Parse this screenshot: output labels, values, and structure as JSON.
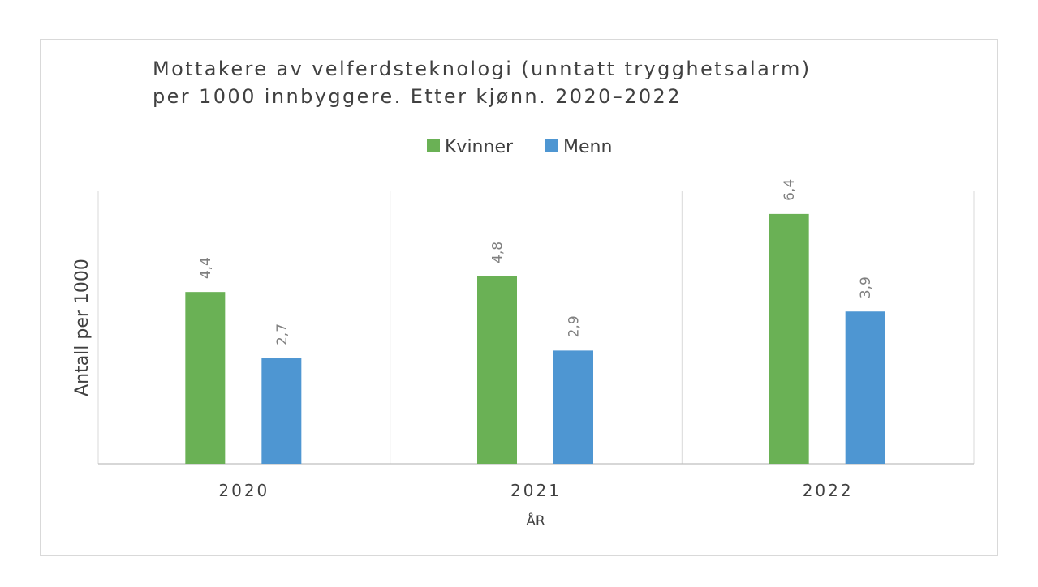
{
  "chart_data": {
    "type": "bar",
    "title_lines": [
      "Mottakere av velferdsteknologi (unntatt trygghetsalarm)",
      "per 1000 innbyggere. Etter kjønn. 2020–2022"
    ],
    "categories": [
      "2020",
      "2021",
      "2022"
    ],
    "series": [
      {
        "name": "Kvinner",
        "values": [
          4.4,
          4.8,
          6.4
        ],
        "labels": [
          "4,4",
          "4,8",
          "6,4"
        ],
        "color": "#6ab155"
      },
      {
        "name": "Menn",
        "values": [
          2.7,
          2.9,
          3.9
        ],
        "labels": [
          "2,7",
          "2,9",
          "3,9"
        ],
        "color": "#4e96d2"
      }
    ],
    "xlabel": "ÅR",
    "ylabel": "Antall per 1000",
    "ylim": [
      0,
      7
    ],
    "grid": "vertical category separators only",
    "legend": "top-center"
  }
}
